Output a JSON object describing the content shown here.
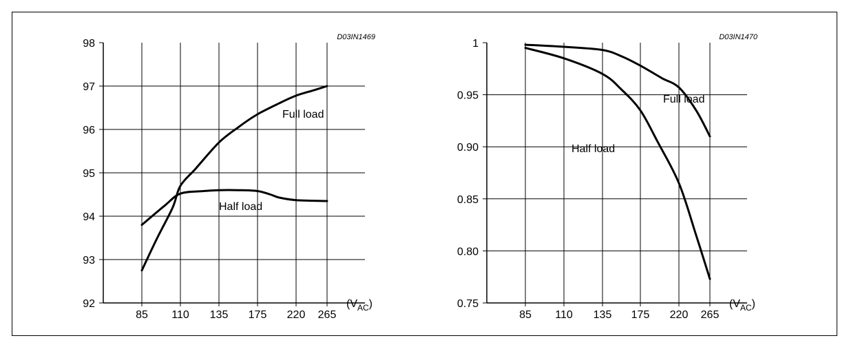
{
  "chart_data": [
    {
      "type": "line",
      "code": "D03IN1469",
      "x_ticks": [
        "85",
        "110",
        "135",
        "175",
        "220",
        "265"
      ],
      "x_unit_main": "(V",
      "x_unit_sub": "AC",
      "x_unit_close": ")",
      "y_ticks": [
        "92",
        "93",
        "94",
        "95",
        "96",
        "97",
        "98"
      ],
      "ylim": [
        92,
        98
      ],
      "grid": true,
      "series": [
        {
          "name": "Full load",
          "points": [
            [
              85,
              92.75
            ],
            [
              95,
              93.5
            ],
            [
              105,
              94.2
            ],
            [
              110,
              94.7
            ],
            [
              120,
              95.1
            ],
            [
              135,
              95.7
            ],
            [
              155,
              96.05
            ],
            [
              175,
              96.35
            ],
            [
              200,
              96.6
            ],
            [
              220,
              96.78
            ],
            [
              245,
              96.9
            ],
            [
              265,
              97.0
            ]
          ]
        },
        {
          "name": "Half load",
          "points": [
            [
              85,
              93.8
            ],
            [
              100,
              94.25
            ],
            [
              110,
              94.52
            ],
            [
              125,
              94.58
            ],
            [
              135,
              94.6
            ],
            [
              155,
              94.6
            ],
            [
              175,
              94.58
            ],
            [
              190,
              94.5
            ],
            [
              200,
              94.43
            ],
            [
              220,
              94.37
            ],
            [
              265,
              94.35
            ]
          ]
        }
      ]
    },
    {
      "type": "line",
      "code": "D03IN1470",
      "x_ticks": [
        "85",
        "110",
        "135",
        "175",
        "220",
        "265"
      ],
      "x_unit_main": "(V",
      "x_unit_sub": "AC",
      "x_unit_close": ")",
      "y_ticks": [
        "0.75",
        "0.80",
        "0.85",
        "0.90",
        "0.95",
        "1"
      ],
      "ylim": [
        0.75,
        1.0
      ],
      "grid": true,
      "series": [
        {
          "name": "Full load",
          "points": [
            [
              85,
              0.998
            ],
            [
              110,
              0.996
            ],
            [
              135,
              0.993
            ],
            [
              155,
              0.987
            ],
            [
              175,
              0.978
            ],
            [
              200,
              0.966
            ],
            [
              220,
              0.957
            ],
            [
              245,
              0.935
            ],
            [
              265,
              0.91
            ]
          ]
        },
        {
          "name": "Half load",
          "points": [
            [
              85,
              0.995
            ],
            [
              110,
              0.985
            ],
            [
              135,
              0.97
            ],
            [
              155,
              0.955
            ],
            [
              175,
              0.935
            ],
            [
              195,
              0.905
            ],
            [
              220,
              0.865
            ],
            [
              245,
              0.815
            ],
            [
              265,
              0.773
            ]
          ]
        }
      ]
    }
  ]
}
